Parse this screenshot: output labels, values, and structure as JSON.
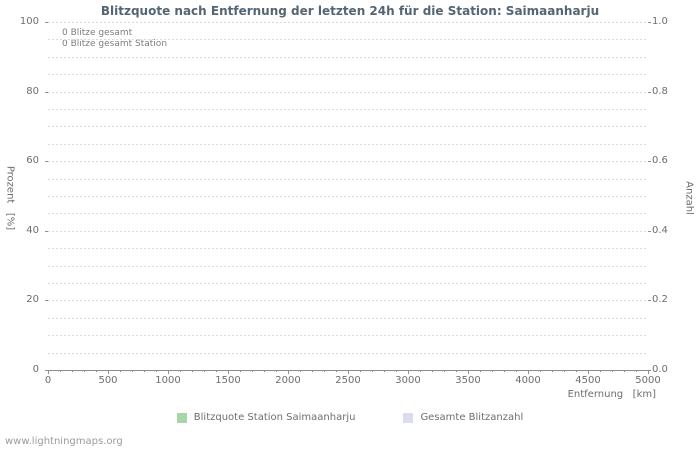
{
  "footer": "www.lightningmaps.org",
  "colors": {
    "grid": "#d9d9d9",
    "axis": "#8c8c8c",
    "text": "#6e6e6e",
    "title": "#546573",
    "footer": "#9b9b9b"
  },
  "chart_data": {
    "type": "line",
    "title": "Blitzquote nach Entfernung der letzten 24h für die Station: Saimaanharju",
    "annotations": [
      "0 Blitze gesamt",
      "0 Blitze gesamt Station"
    ],
    "grid": true,
    "legend_position": "bottom",
    "x_axis": {
      "label": "Entfernung   [km]",
      "min": 0,
      "max": 5000,
      "major_tick_step": 500,
      "minor_tick_step": 100,
      "tick_labels": [
        "0",
        "500",
        "1000",
        "1500",
        "2000",
        "2500",
        "3000",
        "3500",
        "4000",
        "4500",
        "5000"
      ]
    },
    "y_axis_left": {
      "label": "Prozent   [%]",
      "min": 0,
      "max": 100,
      "major_tick_step": 20,
      "minor_grid_step": 5,
      "tick_labels": [
        "0",
        "20",
        "40",
        "60",
        "80",
        "100"
      ]
    },
    "y_axis_right": {
      "label": "Anzahl",
      "min": 0.0,
      "max": 1.0,
      "tick_labels": [
        "0.0",
        "0.2",
        "0.4",
        "0.6",
        "0.8",
        "1.0"
      ]
    },
    "series": [
      {
        "name": "Blitzquote Station Saimaanharju",
        "color": "#a8d6a8",
        "values": []
      },
      {
        "name": "Gesamte Blitzanzahl",
        "color": "#dcdcf0",
        "values": []
      }
    ]
  }
}
